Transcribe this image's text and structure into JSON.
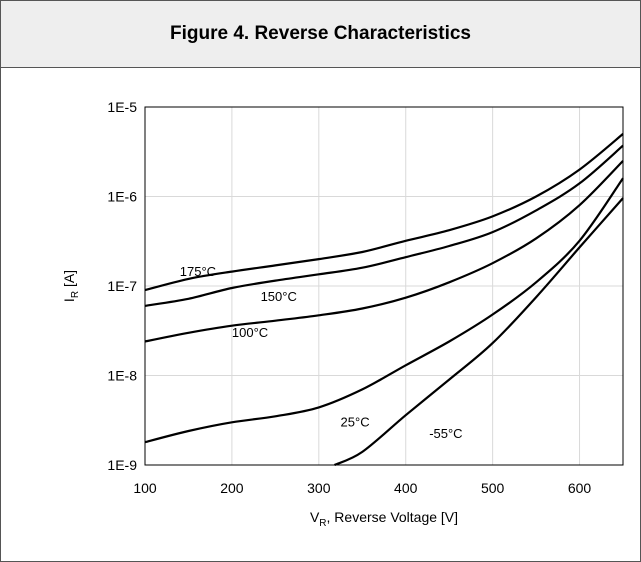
{
  "title": "Figure 4. Reverse Characteristics",
  "chart_data": {
    "type": "line",
    "title": "Figure 4. Reverse Characteristics",
    "xlabel": {
      "main": "V",
      "sub": "R",
      "rest": ", Reverse Voltage [V]"
    },
    "ylabel": {
      "main": "I",
      "sub": "R",
      "rest": " [A]"
    },
    "xlim": [
      100,
      650
    ],
    "ylim": [
      1e-09,
      1e-05
    ],
    "yscale": "log",
    "grid": true,
    "x_ticks": [
      "100",
      "200",
      "300",
      "400",
      "500",
      "600"
    ],
    "y_ticks": [
      "1E-9",
      "1E-8",
      "1E-7",
      "1E-6",
      "1E-5"
    ],
    "series": [
      {
        "name": "175°C",
        "x": [
          100,
          150,
          200,
          250,
          300,
          350,
          400,
          450,
          500,
          550,
          600,
          650
        ],
        "values": [
          9e-08,
          1.2e-07,
          1.45e-07,
          1.7e-07,
          2e-07,
          2.4e-07,
          3.2e-07,
          4.2e-07,
          6e-07,
          1e-06,
          2e-06,
          5e-06
        ]
      },
      {
        "name": "150°C",
        "x": [
          100,
          150,
          200,
          250,
          300,
          350,
          400,
          450,
          500,
          550,
          600,
          650
        ],
        "values": [
          6e-08,
          7.2e-08,
          9.5e-08,
          1.15e-07,
          1.35e-07,
          1.6e-07,
          2.1e-07,
          2.8e-07,
          4e-07,
          7e-07,
          1.4e-06,
          3.7e-06
        ]
      },
      {
        "name": "100°C",
        "x": [
          100,
          150,
          200,
          250,
          300,
          350,
          400,
          450,
          500,
          550,
          600,
          650
        ],
        "values": [
          2.4e-08,
          3e-08,
          3.6e-08,
          4.1e-08,
          4.7e-08,
          5.6e-08,
          7.4e-08,
          1.1e-07,
          1.8e-07,
          3.4e-07,
          8e-07,
          2.5e-06
        ]
      },
      {
        "name": "25°C",
        "x": [
          100,
          150,
          200,
          250,
          300,
          350,
          400,
          450,
          500,
          550,
          600,
          650
        ],
        "values": [
          1.8e-09,
          2.4e-09,
          3e-09,
          3.5e-09,
          4.4e-09,
          7e-09,
          1.3e-08,
          2.4e-08,
          4.8e-08,
          1.1e-07,
          3.2e-07,
          1.6e-06
        ]
      },
      {
        "name": "-55°C",
        "x": [
          318,
          350,
          400,
          450,
          500,
          550,
          600,
          650
        ],
        "values": [
          1e-09,
          1.4e-09,
          3.6e-09,
          9e-09,
          2.3e-08,
          7.5e-08,
          2.7e-07,
          9.6e-07
        ]
      }
    ],
    "curve_labels": [
      {
        "text": "175°C",
        "x": 140,
        "y": 1.3e-07
      },
      {
        "text": "150°C",
        "x": 233,
        "y": 6.8e-08
      },
      {
        "text": "100°C",
        "x": 200,
        "y": 2.7e-08
      },
      {
        "text": "25°C",
        "x": 325,
        "y": 2.7e-09
      },
      {
        "text": "-55°C",
        "x": 427,
        "y": 2e-09
      }
    ]
  }
}
